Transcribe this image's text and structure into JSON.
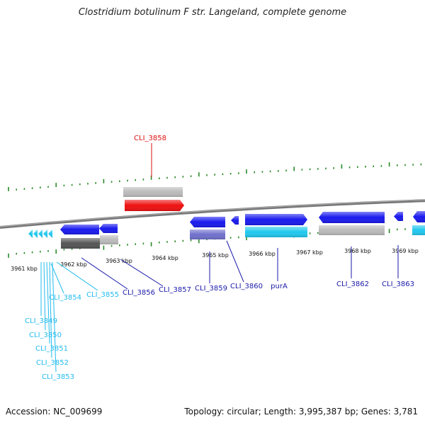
{
  "title": "Clostridium botulinum F str. Langeland, complete genome",
  "footer": {
    "accession": "Accession: NC_009699",
    "summary": "Topology: circular; Length: 3,995,387 bp; Genes: 3,781"
  },
  "colors": {
    "blue": "#1a1aee",
    "light_blue": "#22c8ee",
    "red": "#ee1111",
    "grey": "#bbbbbb",
    "dark_grey": "#555555",
    "purple": "#7070cc",
    "tick_green": "#2a8a2a",
    "backbone": "#777777"
  },
  "ticks": [
    {
      "label": "3961 kbp"
    },
    {
      "label": "3962 kbp"
    },
    {
      "label": "3963 kbp"
    },
    {
      "label": "3964 kbp"
    },
    {
      "label": "3965 kbp"
    },
    {
      "label": "3966 kbp"
    },
    {
      "label": "3967 kbp"
    },
    {
      "label": "3968 kbp"
    },
    {
      "label": "3969 kbp"
    }
  ],
  "genes": [
    {
      "label": "CLI_3849",
      "color": "light_blue"
    },
    {
      "label": "CLI_3850",
      "color": "light_blue"
    },
    {
      "label": "CLI_3851",
      "color": "light_blue"
    },
    {
      "label": "CLI_3852",
      "color": "light_blue"
    },
    {
      "label": "CLI_3853",
      "color": "light_blue"
    },
    {
      "label": "CLI_3854",
      "color": "light_blue"
    },
    {
      "label": "CLI_3855",
      "color": "light_blue"
    },
    {
      "label": "CLI_3856",
      "color": "blue"
    },
    {
      "label": "CLI_3857",
      "color": "blue"
    },
    {
      "label": "CLI_3858",
      "color": "red"
    },
    {
      "label": "CLI_3859",
      "color": "blue"
    },
    {
      "label": "CLI_3860",
      "color": "blue"
    },
    {
      "label": "purA",
      "color": "blue"
    },
    {
      "label": "CLI_3862",
      "color": "blue"
    },
    {
      "label": "CLI_3863",
      "color": "blue"
    }
  ]
}
